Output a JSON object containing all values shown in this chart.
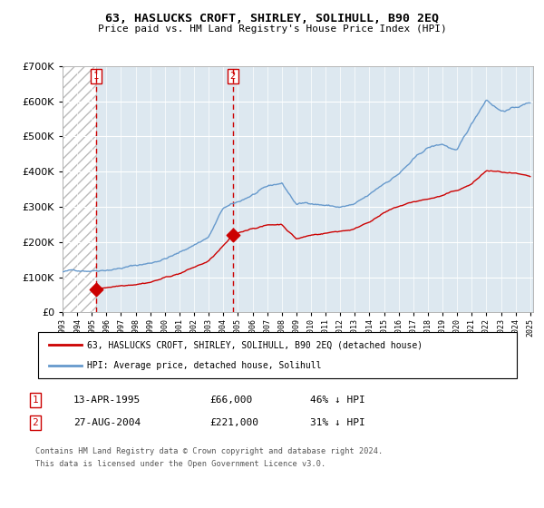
{
  "title": "63, HASLUCKS CROFT, SHIRLEY, SOLIHULL, B90 2EQ",
  "subtitle": "Price paid vs. HM Land Registry's House Price Index (HPI)",
  "legend_line1": "63, HASLUCKS CROFT, SHIRLEY, SOLIHULL, B90 2EQ (detached house)",
  "legend_line2": "HPI: Average price, detached house, Solihull",
  "footnote1": "Contains HM Land Registry data © Crown copyright and database right 2024.",
  "footnote2": "This data is licensed under the Open Government Licence v3.0.",
  "transaction1_date": "13-APR-1995",
  "transaction1_price": 66000,
  "transaction1_hpi": "46% ↓ HPI",
  "transaction2_date": "27-AUG-2004",
  "transaction2_price": 221000,
  "transaction2_hpi": "31% ↓ HPI",
  "hpi_color": "#6699cc",
  "price_color": "#cc0000",
  "bg_color": "#dde8f0",
  "ylim": [
    0,
    700000
  ],
  "yticks": [
    0,
    100000,
    200000,
    300000,
    400000,
    500000,
    600000,
    700000
  ],
  "x_start_year": 1993,
  "x_end_year": 2025,
  "transaction1_year": 1995.28,
  "transaction2_year": 2004.65,
  "transaction1_price_val": 66000,
  "transaction2_price_val": 221000
}
